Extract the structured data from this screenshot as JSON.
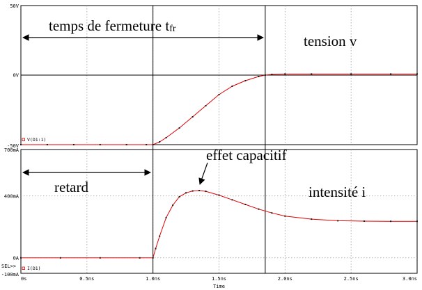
{
  "chart_data": [
    {
      "type": "line",
      "panel": "top",
      "ylim": [
        -50,
        50
      ],
      "y_unit": "V",
      "y_ticks": [
        {
          "v": 50,
          "label": "50V"
        },
        {
          "v": 0,
          "label": "0V"
        },
        {
          "v": -50,
          "label": "-50V"
        }
      ],
      "legend": "V(D1:1)",
      "series": [
        {
          "name": "V(D1:1)",
          "x": [
            0.0,
            0.2,
            0.4,
            0.6,
            0.8,
            0.95,
            1.0,
            1.05,
            1.1,
            1.2,
            1.3,
            1.4,
            1.5,
            1.6,
            1.7,
            1.8,
            1.85,
            1.9,
            2.0,
            2.2,
            2.5,
            2.8,
            3.0
          ],
          "values": [
            -50,
            -50,
            -50,
            -50,
            -50,
            -50,
            -50,
            -48,
            -45,
            -38,
            -30,
            -22,
            -14,
            -8,
            -4,
            -1,
            0,
            0.5,
            0.8,
            0.8,
            0.8,
            0.8,
            0.8
          ]
        }
      ]
    },
    {
      "type": "line",
      "panel": "bottom",
      "ylim": [
        -100,
        700
      ],
      "y_unit": "mA",
      "y_ticks": [
        {
          "v": 700,
          "label": "700mA"
        },
        {
          "v": 400,
          "label": "400mA"
        },
        {
          "v": 0,
          "label": "0A"
        },
        {
          "v": -100,
          "label": "-100mA"
        }
      ],
      "legend": "I(D1)",
      "sel_marker": "SEL>>",
      "series": [
        {
          "name": "I(D1)",
          "x": [
            0.0,
            0.3,
            0.6,
            0.9,
            1.0,
            1.02,
            1.05,
            1.1,
            1.15,
            1.2,
            1.25,
            1.3,
            1.35,
            1.4,
            1.5,
            1.6,
            1.7,
            1.8,
            1.9,
            2.0,
            2.2,
            2.4,
            2.6,
            2.8,
            3.0
          ],
          "values": [
            0,
            0,
            0,
            0,
            0,
            60,
            140,
            260,
            340,
            395,
            420,
            432,
            435,
            430,
            405,
            375,
            345,
            315,
            290,
            270,
            250,
            240,
            237,
            236,
            236
          ]
        }
      ]
    }
  ],
  "x_axis": {
    "xlim": [
      0,
      3
    ],
    "title": "Time",
    "ticks": [
      {
        "v": 0,
        "label": "0s"
      },
      {
        "v": 0.5,
        "label": "0.5ns"
      },
      {
        "v": 1.0,
        "label": "1.0ns"
      },
      {
        "v": 1.5,
        "label": "1.5ns"
      },
      {
        "v": 2.0,
        "label": "2.0ns"
      },
      {
        "v": 2.5,
        "label": "2.5ns"
      },
      {
        "v": 3.0,
        "label": "3.0ns"
      }
    ]
  },
  "markers": {
    "vertical_lines_x": [
      1.0,
      1.85
    ]
  },
  "annotations": {
    "turn_off_time_main": "temps de fermeture t",
    "turn_off_time_sub": "fr",
    "voltage_label": "tension v",
    "delay_label": "retard",
    "capacitive_effect": "effet capacitif",
    "current_label": "intensité i"
  }
}
